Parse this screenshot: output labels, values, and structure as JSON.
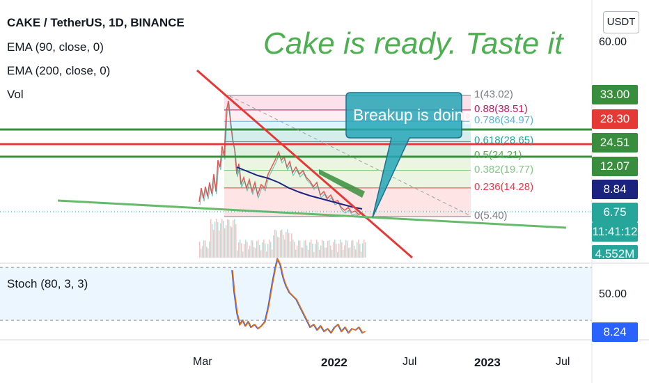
{
  "header": {
    "symbol_title": "CAKE / TetherUS, 1D, BINANCE",
    "indicator_1": "EMA (90, close, 0)",
    "indicator_2": "EMA (200, close, 0)",
    "indicator_3": "Vol"
  },
  "annotation": {
    "headline": "Cake is ready. Taste it",
    "callout": "Breakup is doing"
  },
  "price_axis": {
    "currency_button": "USDT",
    "ticks": [
      "60.00",
      "50.00"
    ],
    "badges": [
      {
        "value": "33.00",
        "color": "#388e3c"
      },
      {
        "value": "28.30",
        "color": "#e53935"
      },
      {
        "value": "24.51",
        "color": "#388e3c"
      },
      {
        "value": "12.07",
        "color": "#388e3c"
      },
      {
        "value": "8.84",
        "color": "#1a237e"
      },
      {
        "value": "6.75",
        "color": "#26a69a"
      },
      {
        "value": "11:41:12",
        "color": "#26a69a"
      },
      {
        "value": "4.552M",
        "color": "#26a69a"
      },
      {
        "value": "8.24",
        "color": "#2962ff"
      }
    ]
  },
  "time_axis": [
    "Mar",
    "2022",
    "Jul",
    "2023",
    "Jul"
  ],
  "oscillator": {
    "label": "Stoch (80, 3, 3)"
  },
  "chart_data": {
    "type": "line",
    "fib_levels": [
      {
        "label": "1(43.02)",
        "ratio": 1,
        "price": 43.02,
        "color": "#787b86"
      },
      {
        "label": "0.88(38.51)",
        "ratio": 0.88,
        "price": 38.51,
        "color": "#c2185b"
      },
      {
        "label": "0.786(34.97)",
        "ratio": 0.786,
        "price": 34.97,
        "color": "#5ab4d6"
      },
      {
        "label": "0.618(28.65)",
        "ratio": 0.618,
        "price": 28.65,
        "color": "#26a69a"
      },
      {
        "label": "0.5(24.21)",
        "ratio": 0.5,
        "price": 24.21,
        "color": "#4caf50"
      },
      {
        "label": "0.382(19.77)",
        "ratio": 0.382,
        "price": 19.77,
        "color": "#81c784"
      },
      {
        "label": "0.236(14.28)",
        "ratio": 0.236,
        "price": 14.28,
        "color": "#f23645"
      },
      {
        "label": "0(5.40)",
        "ratio": 0,
        "price": 5.4,
        "color": "#787b86"
      }
    ],
    "horizontal_lines": [
      {
        "price": 28.3,
        "color": "#388e3c"
      },
      {
        "price": 24.51,
        "color": "#e53935"
      },
      {
        "price": 21.0,
        "color": "#388e3c"
      }
    ],
    "colors": {
      "up": "#26a69a",
      "down": "#ef5350",
      "ema90": "#1a237e",
      "ema200": "#4caf50",
      "stoch": "#ef6c00",
      "stoch_signal": "#2962ff"
    }
  }
}
